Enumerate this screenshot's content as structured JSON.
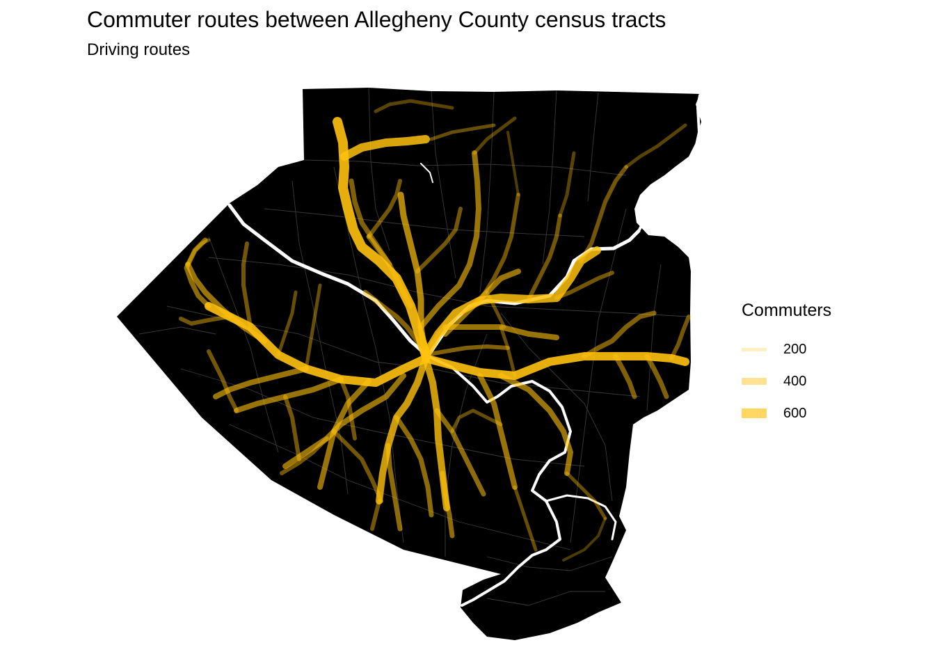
{
  "chart": {
    "title": "Commuter routes between Allegheny County census tracts",
    "subtitle": "Driving routes"
  },
  "legend": {
    "title": "Commuters",
    "items": [
      {
        "label": "200",
        "value": 200
      },
      {
        "label": "400",
        "value": 400
      },
      {
        "label": "600",
        "value": 600
      }
    ]
  },
  "colors": {
    "background": "#ffffff",
    "land": "#000000",
    "route": "#ffc20e",
    "river": "#ffffff",
    "tract_border": "#3a3a3a"
  },
  "map": {
    "region": "Allegheny County",
    "layers": [
      "census-tracts",
      "rivers",
      "commuter-routes"
    ]
  }
}
